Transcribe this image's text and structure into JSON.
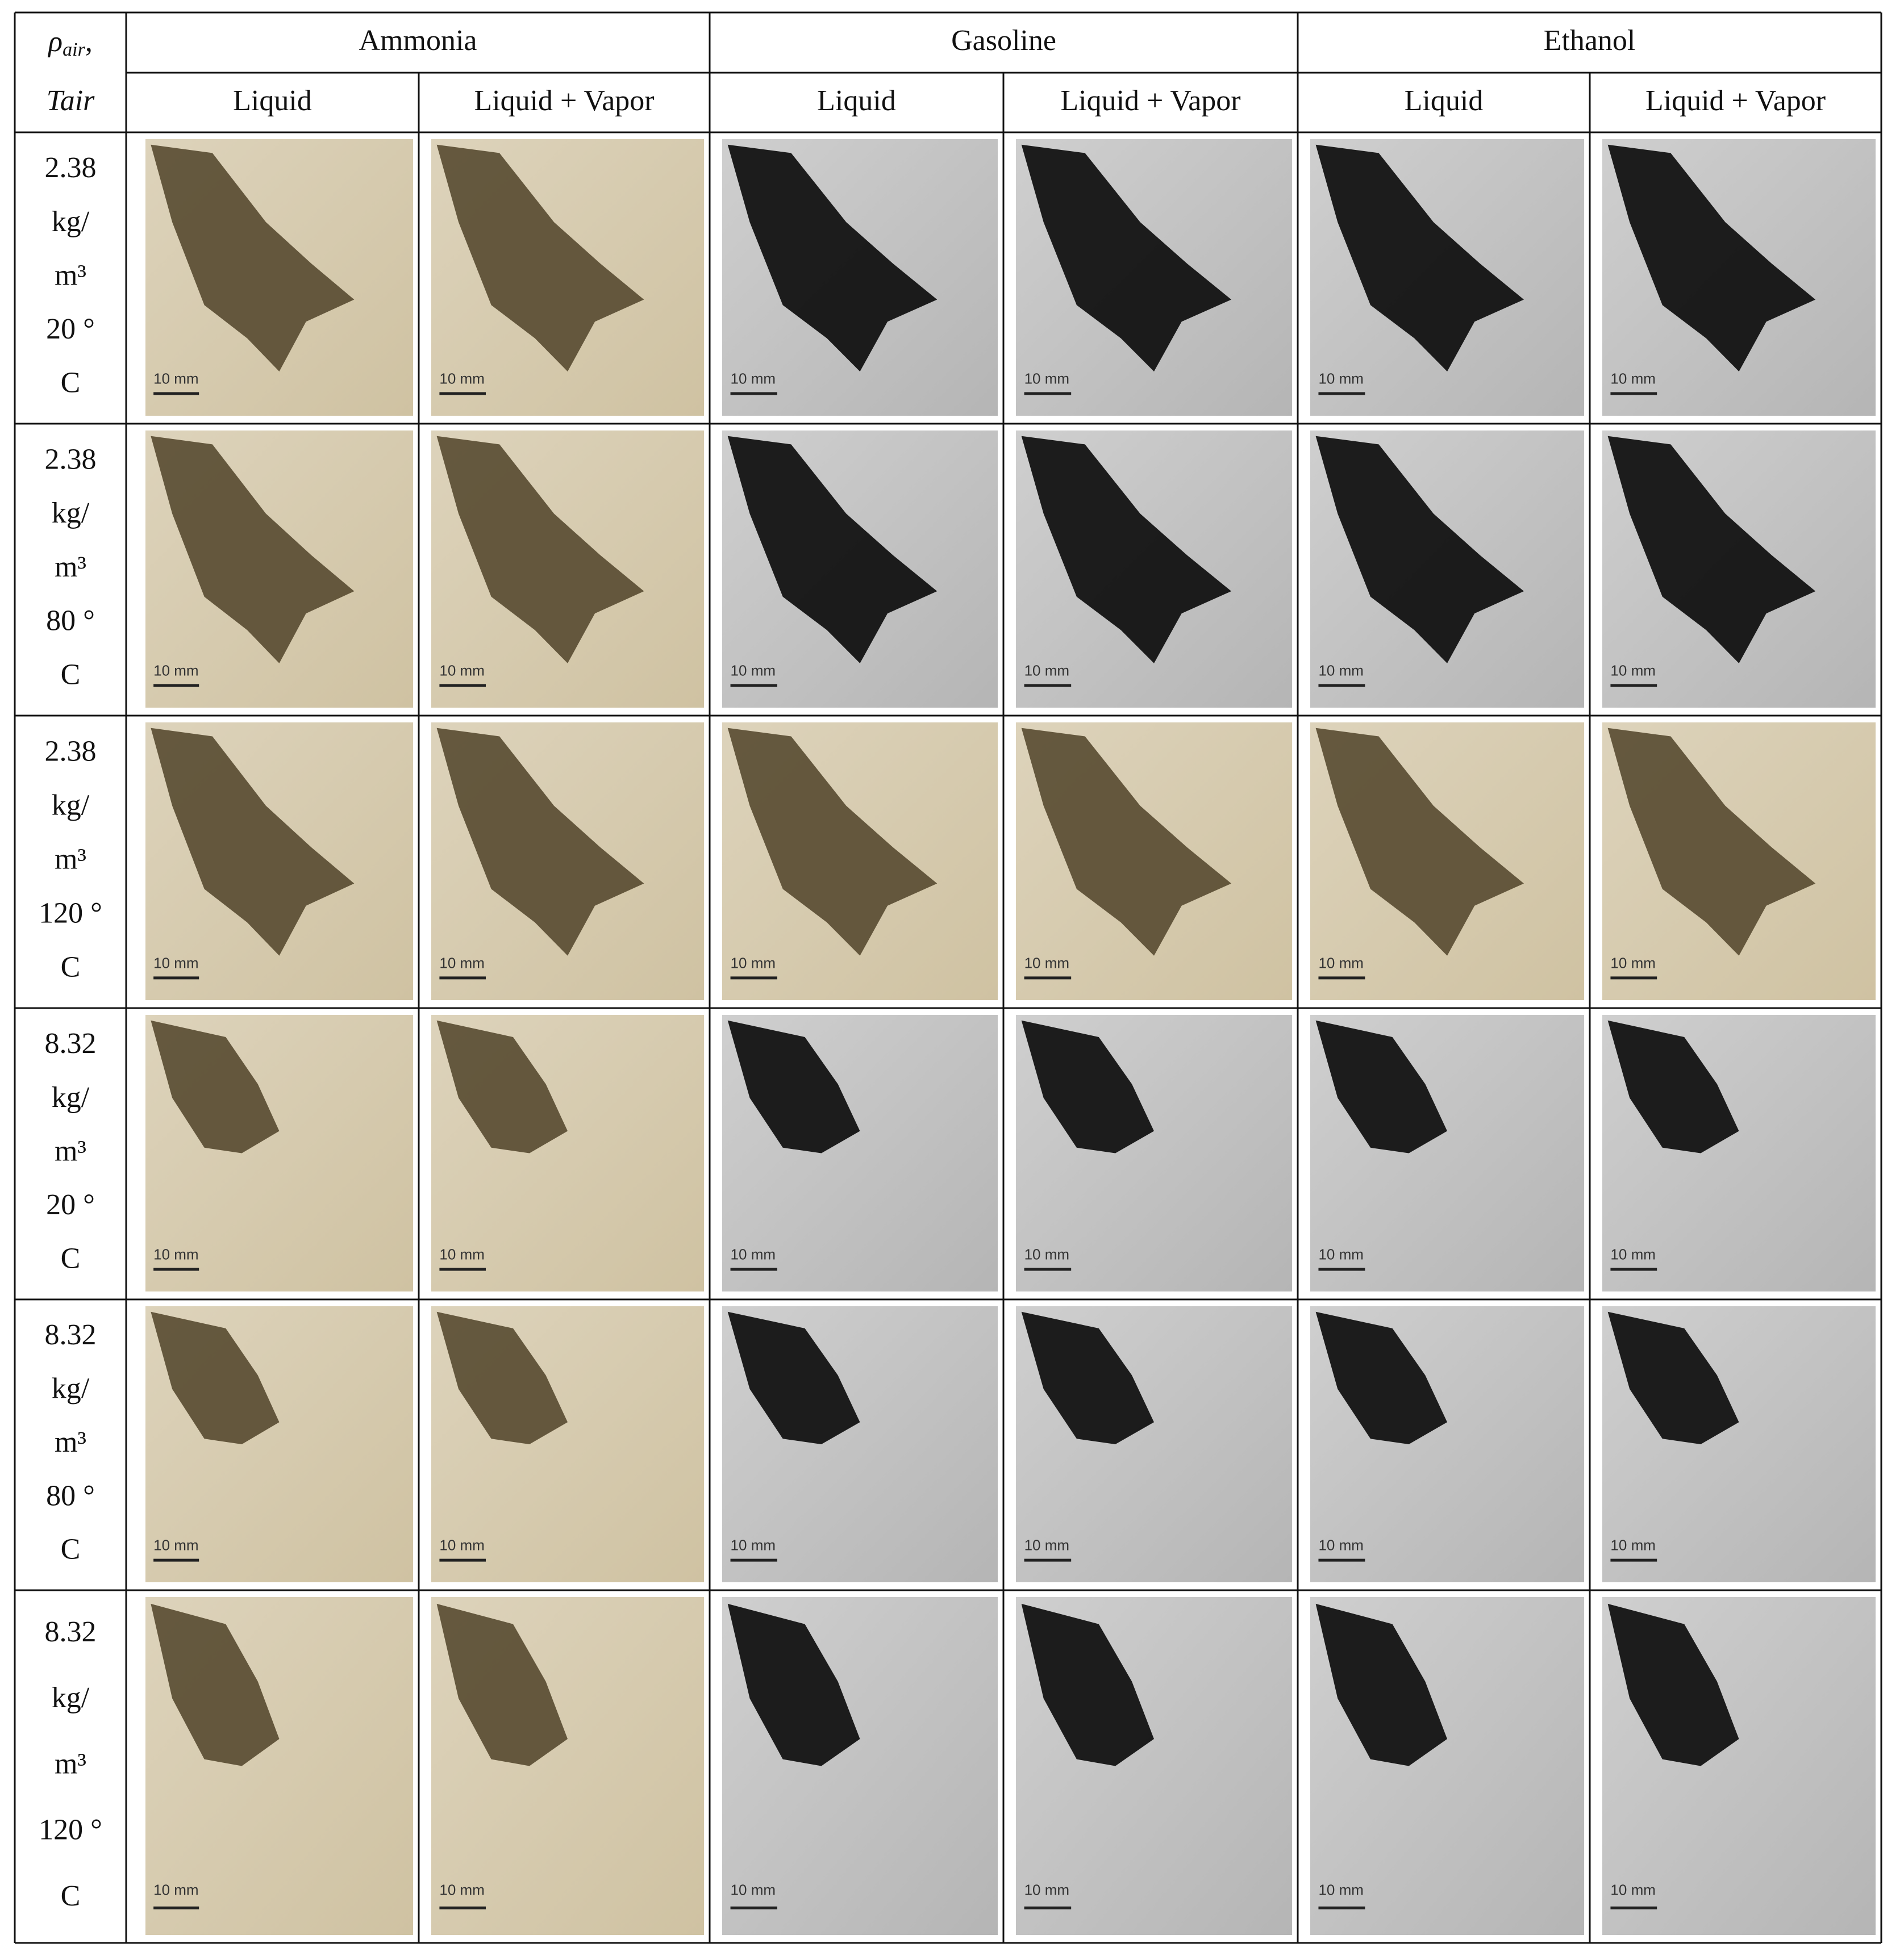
{
  "header": {
    "corner": {
      "symbol": "ρ",
      "subscript": "air",
      "suffix": ",",
      "line2": "Tair"
    },
    "groups": [
      "Ammonia",
      "Gasoline",
      "Ethanol"
    ],
    "columns": [
      "Liquid",
      "Liquid + Vapor",
      "Liquid",
      "Liquid + Vapor",
      "Liquid",
      "Liquid + Vapor"
    ]
  },
  "rows": [
    {
      "label": [
        "2.38",
        "kg/",
        "m³",
        "20 °",
        "C"
      ],
      "images": [
        {
          "tone": "sepia",
          "scale": "10 mm"
        },
        {
          "tone": "sepia",
          "scale": "10 mm"
        },
        {
          "tone": "gray",
          "scale": "10 mm"
        },
        {
          "tone": "gray",
          "scale": "10 mm"
        },
        {
          "tone": "gray",
          "scale": "10 mm"
        },
        {
          "tone": "gray",
          "scale": "10 mm"
        }
      ]
    },
    {
      "label": [
        "2.38",
        "kg/",
        "m³",
        "80 °",
        "C"
      ],
      "images": [
        {
          "tone": "sepia",
          "scale": "10 mm"
        },
        {
          "tone": "sepia",
          "scale": "10 mm"
        },
        {
          "tone": "gray",
          "scale": "10 mm"
        },
        {
          "tone": "gray",
          "scale": "10 mm"
        },
        {
          "tone": "gray",
          "scale": "10 mm"
        },
        {
          "tone": "gray",
          "scale": "10 mm"
        }
      ]
    },
    {
      "label": [
        "2.38",
        "kg/",
        "m³",
        "120 °",
        "C"
      ],
      "images": [
        {
          "tone": "sepia",
          "scale": "10 mm"
        },
        {
          "tone": "sepia",
          "scale": "10 mm"
        },
        {
          "tone": "sepia",
          "scale": "10 mm"
        },
        {
          "tone": "sepia",
          "scale": "10 mm"
        },
        {
          "tone": "sepia",
          "scale": "10 mm"
        },
        {
          "tone": "sepia",
          "scale": "10 mm"
        }
      ]
    },
    {
      "label": [
        "8.32",
        "kg/",
        "m³",
        "20 °",
        "C"
      ],
      "images": [
        {
          "tone": "sepia",
          "scale": "10 mm"
        },
        {
          "tone": "sepia",
          "scale": "10 mm"
        },
        {
          "tone": "gray",
          "scale": "10 mm"
        },
        {
          "tone": "gray",
          "scale": "10 mm"
        },
        {
          "tone": "gray",
          "scale": "10 mm"
        },
        {
          "tone": "gray",
          "scale": "10 mm"
        }
      ]
    },
    {
      "label": [
        "8.32",
        "kg/",
        "m³",
        "80 °",
        "C"
      ],
      "images": [
        {
          "tone": "sepia",
          "scale": "10 mm"
        },
        {
          "tone": "sepia",
          "scale": "10 mm"
        },
        {
          "tone": "gray",
          "scale": "10 mm"
        },
        {
          "tone": "gray",
          "scale": "10 mm"
        },
        {
          "tone": "gray",
          "scale": "10 mm"
        },
        {
          "tone": "gray",
          "scale": "10 mm"
        }
      ]
    },
    {
      "label": [
        "8.32",
        "kg/",
        "m³",
        "120 °",
        "C"
      ],
      "images": [
        {
          "tone": "sepia",
          "scale": "10 mm"
        },
        {
          "tone": "sepia",
          "scale": "10 mm"
        },
        {
          "tone": "gray",
          "scale": "10 mm"
        },
        {
          "tone": "gray",
          "scale": "10 mm"
        },
        {
          "tone": "gray",
          "scale": "10 mm"
        },
        {
          "tone": "gray",
          "scale": "10 mm"
        }
      ]
    }
  ]
}
